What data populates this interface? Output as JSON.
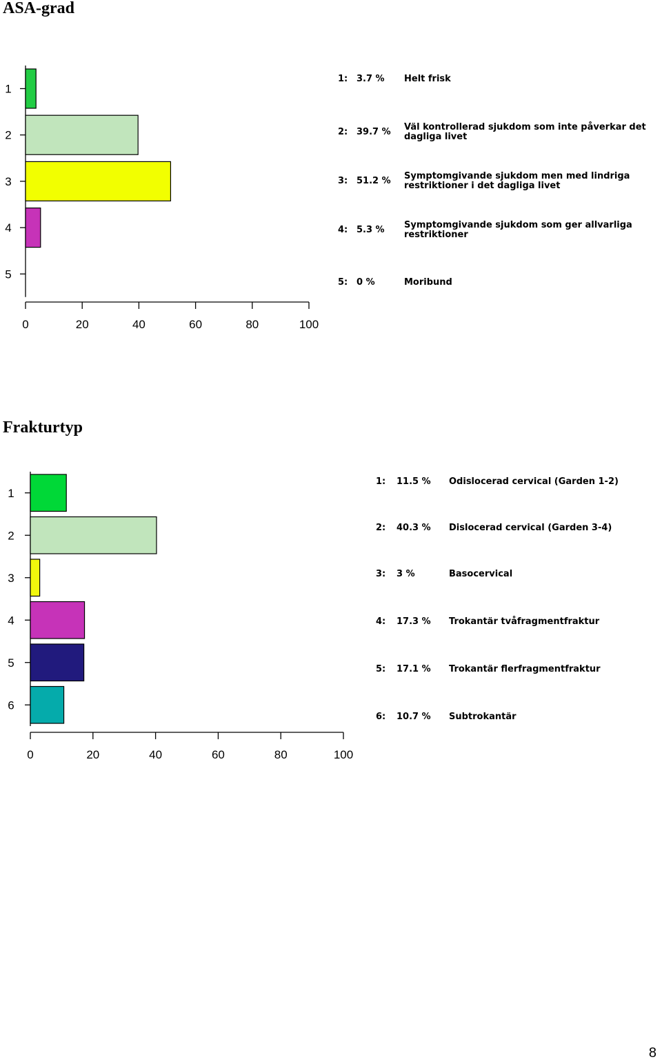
{
  "page_number": "8",
  "chart_data": [
    {
      "type": "bar",
      "orientation": "horizontal",
      "title": "ASA-grad",
      "categories": [
        "1",
        "2",
        "3",
        "4",
        "5"
      ],
      "values": [
        3.7,
        39.7,
        51.2,
        5.3,
        0
      ],
      "colors": [
        "#22cc44",
        "#c1e5bc",
        "#f2ff00",
        "#c633b8",
        "#ffffff"
      ],
      "xlim": [
        0,
        100
      ],
      "xticks": [
        "0",
        "20",
        "40",
        "60",
        "80",
        "100"
      ],
      "legend": [
        {
          "num": "1:",
          "pct": "3.7 %",
          "lines": [
            "Helt frisk"
          ]
        },
        {
          "num": "2:",
          "pct": "39.7 %",
          "lines": [
            "Väl kontrollerad sjukdom som inte påverkar det",
            "dagliga livet"
          ]
        },
        {
          "num": "3:",
          "pct": "51.2 %",
          "lines": [
            "Symptomgivande sjukdom men med lindriga",
            "restriktioner i det dagliga livet"
          ]
        },
        {
          "num": "4:",
          "pct": "5.3 %",
          "lines": [
            "Symptomgivande sjukdom som ger allvarliga",
            "restriktioner"
          ]
        },
        {
          "num": "5:",
          "pct": "0 %",
          "lines": [
            "Moribund"
          ]
        }
      ]
    },
    {
      "type": "bar",
      "orientation": "horizontal",
      "title": "Frakturtyp",
      "categories": [
        "1",
        "2",
        "3",
        "4",
        "5",
        "6"
      ],
      "values": [
        11.5,
        40.3,
        3,
        17.3,
        17.1,
        10.7
      ],
      "colors": [
        "#00d837",
        "#c1e5bc",
        "#f2f70d",
        "#c633b8",
        "#211a7d",
        "#05abab"
      ],
      "xlim": [
        0,
        100
      ],
      "xticks": [
        "0",
        "20",
        "40",
        "60",
        "80",
        "100"
      ],
      "legend": [
        {
          "num": "1:",
          "pct": "11.5 %",
          "lines": [
            "Odislocerad cervical (Garden 1-2)"
          ]
        },
        {
          "num": "2:",
          "pct": "40.3 %",
          "lines": [
            "Dislocerad cervical (Garden 3-4)"
          ]
        },
        {
          "num": "3:",
          "pct": "3 %",
          "lines": [
            "Basocervical"
          ]
        },
        {
          "num": "4:",
          "pct": "17.3 %",
          "lines": [
            "Trokantär tvåfragmentfraktur"
          ]
        },
        {
          "num": "5:",
          "pct": "17.1 %",
          "lines": [
            "Trokantär flerfragmentfraktur"
          ]
        },
        {
          "num": "6:",
          "pct": "10.7 %",
          "lines": [
            "Subtrokantär"
          ]
        }
      ]
    }
  ]
}
